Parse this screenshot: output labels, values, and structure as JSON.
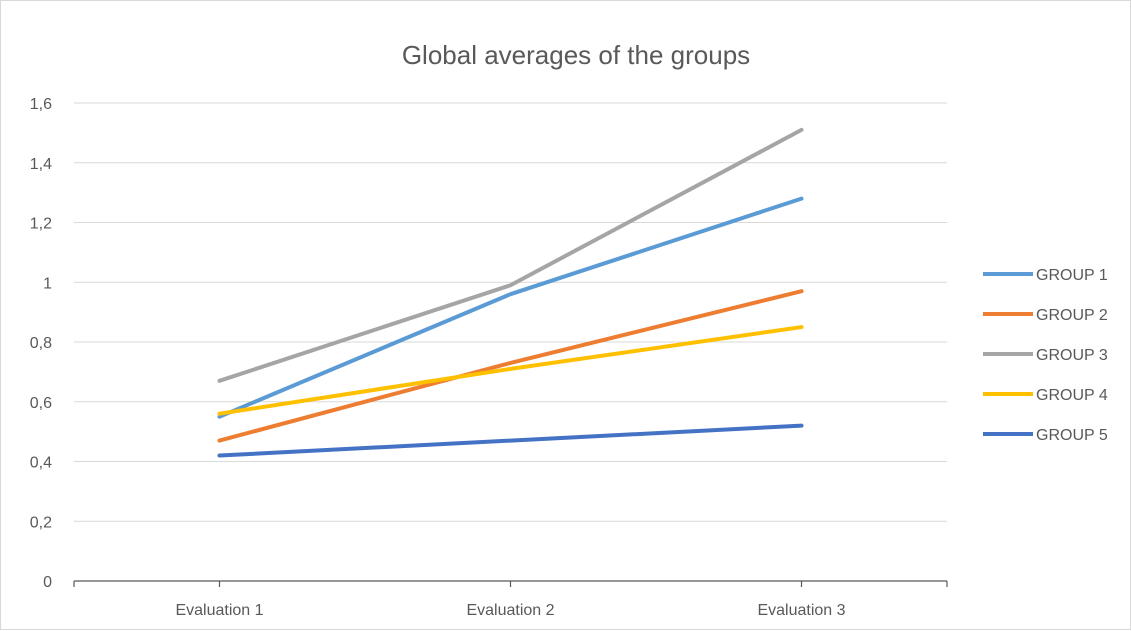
{
  "chart_data": {
    "type": "line",
    "title": "Global averages of the groups",
    "categories": [
      "Evaluation 1",
      "Evaluation 2",
      "Evaluation 3"
    ],
    "ylim": [
      0,
      1.6
    ],
    "y_ticks": [
      "0",
      "0,2",
      "0,4",
      "0,6",
      "0,8",
      "1",
      "1,2",
      "1,4",
      "1,6"
    ],
    "y_tick_values": [
      0,
      0.2,
      0.4,
      0.6,
      0.8,
      1.0,
      1.2,
      1.4,
      1.6
    ],
    "grid": true,
    "legend_position": "right",
    "series": [
      {
        "name": "GROUP 1",
        "color": "#5b9bd5",
        "values": [
          0.55,
          0.96,
          1.28
        ]
      },
      {
        "name": "GROUP 2",
        "color": "#ed7d31",
        "values": [
          0.47,
          0.73,
          0.97
        ]
      },
      {
        "name": "GROUP 3",
        "color": "#a5a5a5",
        "values": [
          0.67,
          0.99,
          1.51
        ]
      },
      {
        "name": "GROUP 4",
        "color": "#ffc000",
        "values": [
          0.56,
          0.71,
          0.85
        ]
      },
      {
        "name": "GROUP 5",
        "color": "#4472c4",
        "values": [
          0.42,
          0.47,
          0.52
        ]
      }
    ]
  }
}
